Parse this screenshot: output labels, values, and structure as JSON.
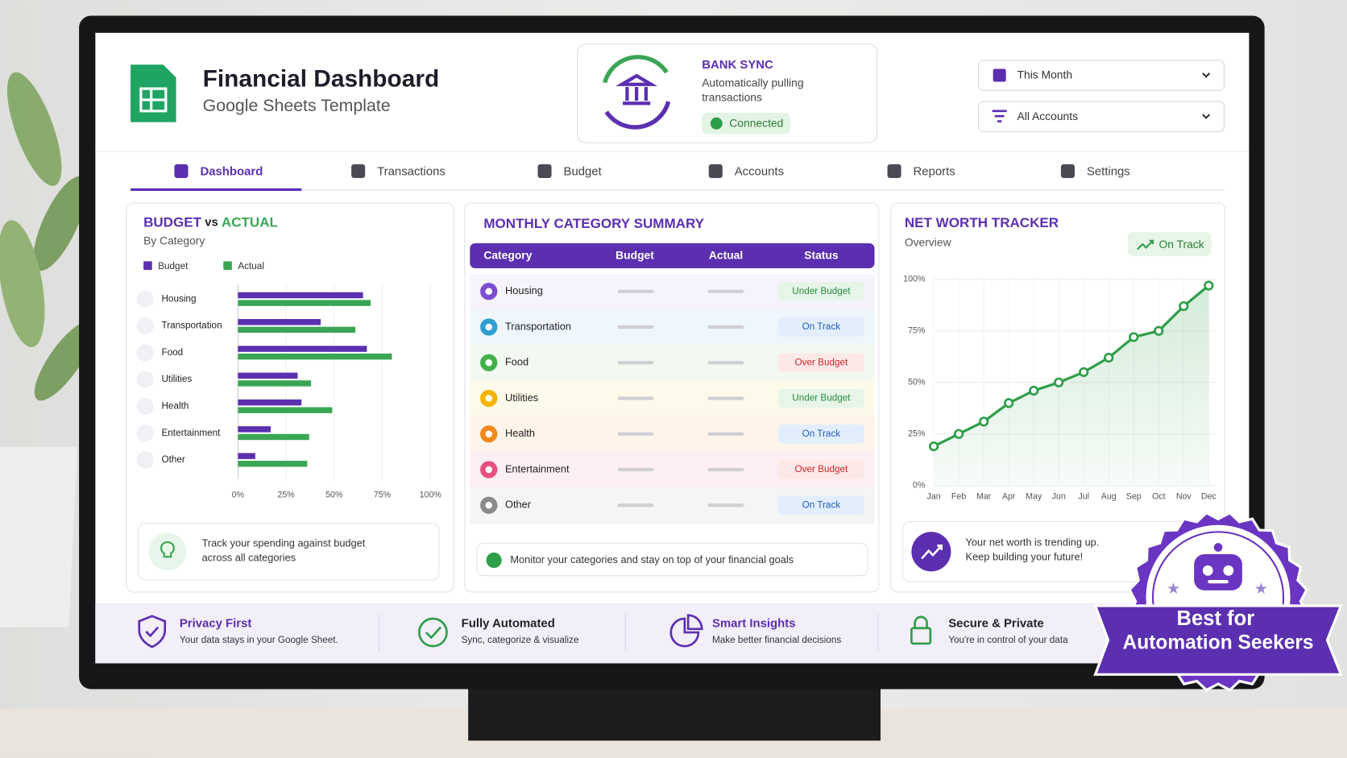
{
  "header": {
    "title": "Financial Dashboard",
    "subtitle": "Google Sheets Template"
  },
  "bank_sync": {
    "title": "BANK SYNC",
    "description_lines": [
      "Automatically pulling",
      "transactions"
    ],
    "status": "Connected"
  },
  "filters": [
    "This Month",
    "All Accounts"
  ],
  "nav": [
    "Dashboard",
    "Transactions",
    "Budget",
    "Accounts",
    "Reports",
    "Settings"
  ],
  "chart_data": [
    {
      "type": "bar",
      "title": "BUDGET vs ACTUAL",
      "title_colors": [
        "#5b2fb0",
        "#222222",
        "#3aa655"
      ],
      "subtitle": "By Category",
      "categories": [
        "Housing",
        "Transportation",
        "Food",
        "Utilities",
        "Health",
        "Entertainment",
        "Other"
      ],
      "series": [
        {
          "name": "Budget",
          "color": "#5b2fb0",
          "values": [
            65,
            43,
            67,
            31,
            33,
            17,
            9
          ]
        },
        {
          "name": "Actual",
          "color": "#3aa655",
          "values": [
            69,
            61,
            80,
            38,
            49,
            37,
            36
          ]
        }
      ],
      "xlim": [
        0,
        100
      ],
      "xticks": [
        {
          "value": 0,
          "label": "0%"
        },
        {
          "value": 25,
          "label": "25%"
        },
        {
          "value": 50,
          "label": "50%"
        },
        {
          "value": 75,
          "label": "75%"
        },
        {
          "value": 100,
          "label": "100%"
        }
      ],
      "grid": true,
      "note": [
        "Track your spending against budget",
        "across all categories"
      ]
    },
    {
      "type": "line",
      "title": "NET WORTH TRACKER",
      "subtitle": "Overview",
      "badge": "On Track",
      "categories": [
        "Jan",
        "Feb",
        "Mar",
        "Apr",
        "May",
        "Jun",
        "Jul",
        "Aug",
        "Sep",
        "Oct",
        "Nov",
        "Dec"
      ],
      "values": [
        19,
        25,
        31,
        40,
        46,
        50,
        55,
        62,
        72,
        75,
        87,
        97
      ],
      "color": "#2e9e48",
      "ylim": [
        0,
        100
      ],
      "yticks": [
        {
          "value": 0,
          "label": "0%"
        },
        {
          "value": 25,
          "label": "25%"
        },
        {
          "value": 50,
          "label": "50%"
        },
        {
          "value": 75,
          "label": "75%"
        },
        {
          "value": 100,
          "label": "100%"
        }
      ],
      "grid": true,
      "note": [
        "Your net worth is trending up.",
        "Keep building your future!"
      ]
    }
  ],
  "table": {
    "title": "MONTHLY CATEGORY SUMMARY",
    "columns": [
      "Category",
      "Budget",
      "Actual",
      "Status"
    ],
    "rows": [
      {
        "category": "Housing",
        "status": "Under Budget",
        "status_color": "#2e8b3e",
        "status_bg": "#e6f5e8",
        "icon_color": "#7b4fd0",
        "tint": "#f7f3fd"
      },
      {
        "category": "Transportation",
        "status": "On Track",
        "status_color": "#1f5fbf",
        "status_bg": "#e3eefc",
        "icon_color": "#2f9fd0",
        "tint": "#eff6fd"
      },
      {
        "category": "Food",
        "status": "Over Budget",
        "status_color": "#c62828",
        "status_bg": "#fde8e8",
        "icon_color": "#46b04a",
        "tint": "#f1f9f1"
      },
      {
        "category": "Utilities",
        "status": "Under Budget",
        "status_color": "#2e8b3e",
        "status_bg": "#e6f5e8",
        "icon_color": "#f4b400",
        "tint": "#fefaea"
      },
      {
        "category": "Health",
        "status": "On Track",
        "status_color": "#1f5fbf",
        "status_bg": "#e3eefc",
        "icon_color": "#f08a1c",
        "tint": "#fef4ea"
      },
      {
        "category": "Entertainment",
        "status": "Over Budget",
        "status_color": "#c62828",
        "status_bg": "#fde8e8",
        "icon_color": "#e94f7c",
        "tint": "#fdeff3"
      },
      {
        "category": "Other",
        "status": "On Track",
        "status_color": "#1f5fbf",
        "status_bg": "#e3eefc",
        "icon_color": "#8a8a8a",
        "tint": "#f5f5f6"
      }
    ],
    "note": "Monitor your categories and stay on top of your financial goals"
  },
  "features": [
    {
      "title": "Privacy First",
      "description": "Your data stays in your Google Sheet."
    },
    {
      "title": "Fully Automated",
      "description": "Sync, categorize & visualize"
    },
    {
      "title": "Smart Insights",
      "description": "Make better financial decisions"
    },
    {
      "title": "Secure & Private",
      "description": "You're in control of your data"
    }
  ],
  "badge": [
    "Best for",
    "Automation Seekers"
  ]
}
